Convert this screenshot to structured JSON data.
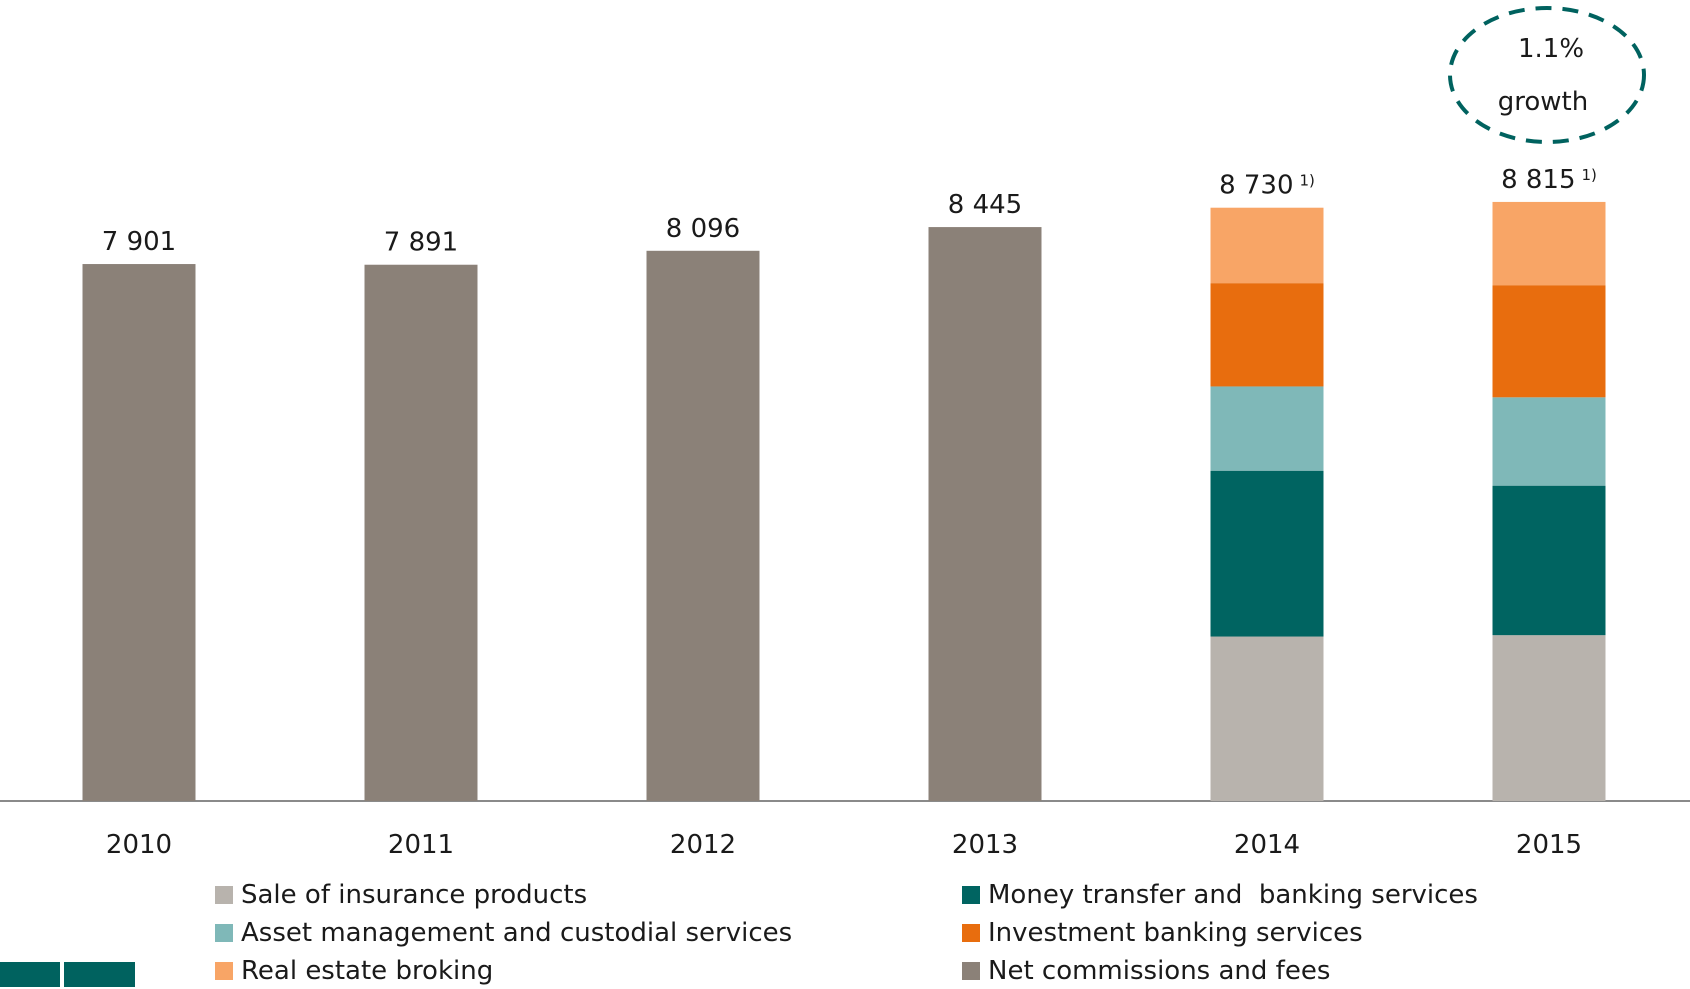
{
  "chart_data": {
    "type": "bar",
    "categories": [
      "2010",
      "2011",
      "2012",
      "2013",
      "2014",
      "2015"
    ],
    "totals": [
      7901,
      7891,
      8096,
      8445,
      8730,
      8815
    ],
    "total_labels": [
      "7 901",
      "7 891",
      "8 096",
      "8 445",
      "8 730",
      "8 815"
    ],
    "footnote_marks": [
      "",
      "",
      "",
      "",
      "1)",
      "1)"
    ],
    "stack_order": [
      "Sale of insurance products",
      "Money transfer and  banking services",
      "Asset management and custodial services",
      "Investment banking services",
      "Real estate broking"
    ],
    "series": [
      {
        "name": "Net commissions and fees",
        "color": "#8b8178",
        "values": [
          7901,
          7891,
          8096,
          8445,
          null,
          null
        ]
      },
      {
        "name": "Sale of insurance products",
        "color": "#b8b3ad",
        "values": [
          null,
          null,
          null,
          null,
          2420,
          2440
        ]
      },
      {
        "name": "Money transfer and  banking services",
        "color": "#006461",
        "values": [
          null,
          null,
          null,
          null,
          2440,
          2200
        ]
      },
      {
        "name": "Asset management and custodial services",
        "color": "#7fb8b8",
        "values": [
          null,
          null,
          null,
          null,
          1240,
          1300
        ]
      },
      {
        "name": "Investment banking services",
        "color": "#e86d0e",
        "values": [
          null,
          null,
          null,
          null,
          1520,
          1650
        ]
      },
      {
        "name": "Real estate broking",
        "color": "#f8a566",
        "values": [
          null,
          null,
          null,
          null,
          1110,
          1225
        ]
      }
    ],
    "annotation": {
      "line1": "1.1%",
      "line2": "growth"
    },
    "axis_min": 0,
    "legend_position": "bottom",
    "grid": false,
    "accent": "#00625f"
  },
  "legend": [
    {
      "label": "Sale of insurance products",
      "color": "#b8b3ad"
    },
    {
      "label": "Asset management and custodial services",
      "color": "#7fb8b8"
    },
    {
      "label": "Real estate broking",
      "color": "#f8a566"
    },
    {
      "label": "Money transfer and  banking services",
      "color": "#006461"
    },
    {
      "label": "Investment banking services",
      "color": "#e86d0e"
    },
    {
      "label": "Net commissions and fees",
      "color": "#8b8178"
    }
  ]
}
